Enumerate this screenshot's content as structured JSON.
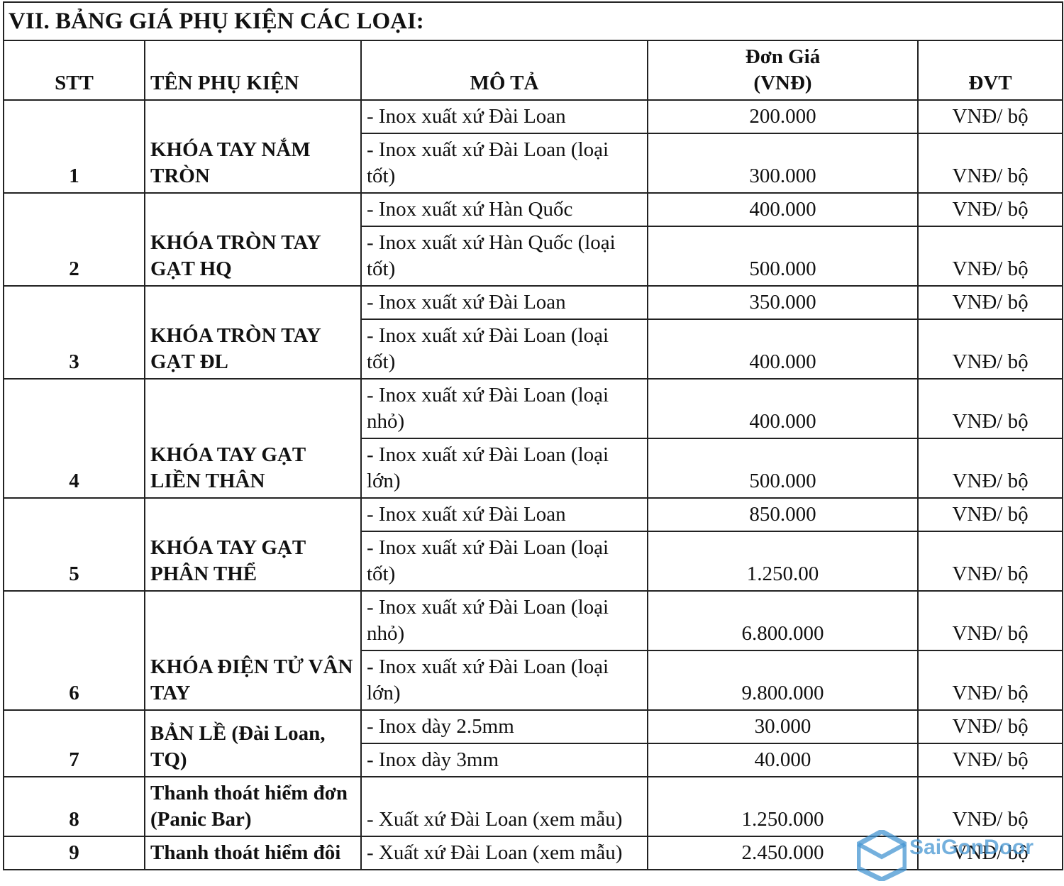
{
  "title": "VII. BẢNG GIÁ PHỤ KIỆN CÁC LOẠI:",
  "header": [
    "STT",
    "TÊN PHỤ KIỆN",
    "MÔ TẢ",
    "Đơn Giá\n(VNĐ)",
    "ĐVT"
  ],
  "groups": [
    {
      "stt": "1",
      "name": "KHÓA TAY NẮM TRÒN",
      "items": [
        {
          "desc": "- Inox xuất xứ Đài Loan",
          "price": "200.000",
          "unit": "VNĐ/ bộ"
        },
        {
          "desc": "- Inox xuất xứ Đài Loan (loại tốt)",
          "price": "300.000",
          "unit": "VNĐ/ bộ"
        }
      ]
    },
    {
      "stt": "2",
      "name": "KHÓA TRÒN TAY GẠT HQ",
      "items": [
        {
          "desc": "- Inox xuất xứ Hàn Quốc",
          "price": "400.000",
          "unit": "VNĐ/ bộ"
        },
        {
          "desc": "- Inox xuất xứ Hàn Quốc (loại tốt)",
          "price": "500.000",
          "unit": "VNĐ/ bộ"
        }
      ]
    },
    {
      "stt": "3",
      "name": "KHÓA TRÒN TAY GẠT ĐL",
      "items": [
        {
          "desc": "- Inox xuất xứ Đài Loan",
          "price": "350.000",
          "unit": "VNĐ/ bộ"
        },
        {
          "desc": "- Inox xuất xứ Đài Loan (loại tốt)",
          "price": "400.000",
          "unit": "VNĐ/ bộ"
        }
      ]
    },
    {
      "stt": "4",
      "name": "KHÓA TAY GẠT LIỀN THÂN",
      "items": [
        {
          "desc": "- Inox xuất xứ Đài Loan (loại nhỏ)",
          "price": "400.000",
          "unit": "VNĐ/ bộ"
        },
        {
          "desc": "- Inox xuất xứ Đài Loan (loại lớn)",
          "price": "500.000",
          "unit": "VNĐ/ bộ"
        }
      ]
    },
    {
      "stt": "5",
      "name": "KHÓA TAY GẠT PHÂN THỂ",
      "items": [
        {
          "desc": "- Inox xuất xứ Đài Loan",
          "price": "850.000",
          "unit": "VNĐ/ bộ"
        },
        {
          "desc": "- Inox xuất xứ Đài Loan (loại tốt)",
          "price": "1.250.00",
          "unit": "VNĐ/ bộ"
        }
      ]
    },
    {
      "stt": "6",
      "name": "KHÓA ĐIỆN TỬ VÂN TAY",
      "items": [
        {
          "desc": "- Inox xuất xứ Đài Loan (loại nhỏ)",
          "price": "6.800.000",
          "unit": "VNĐ/ bộ"
        },
        {
          "desc": "- Inox xuất xứ Đài Loan (loại lớn)",
          "price": "9.800.000",
          "unit": "VNĐ/ bộ"
        }
      ]
    },
    {
      "stt": "7",
      "name": "BẢN LỀ (Đài Loan, TQ)",
      "items": [
        {
          "desc": "- Inox dày 2.5mm",
          "price": "30.000",
          "unit": "VNĐ/ bộ"
        },
        {
          "desc": "- Inox dày 3mm",
          "price": "40.000",
          "unit": "VNĐ/ bộ"
        }
      ]
    },
    {
      "stt": "8",
      "name": "Thanh thoát hiểm đơn (Panic Bar)",
      "items": [
        {
          "desc": "- Xuất xứ Đài Loan (xem mẫu)",
          "price": "1.250.000",
          "unit": "VNĐ/ bộ"
        }
      ]
    },
    {
      "stt": "9",
      "name": "Thanh thoát hiểm đôi",
      "items": [
        {
          "desc": "- Xuất xứ Đài Loan (xem mẫu)",
          "price": "2.450.000",
          "unit": "VNĐ/ bộ"
        }
      ]
    }
  ],
  "watermark": "SaiGonDoor"
}
